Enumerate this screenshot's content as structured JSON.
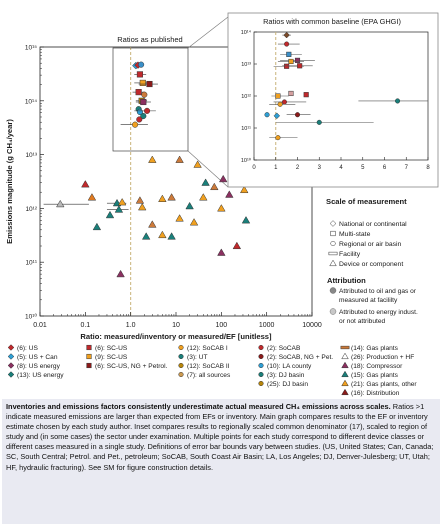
{
  "chart_data": [
    {
      "type": "scatter",
      "panel": "main",
      "title": "",
      "annotation": "Ratios as published",
      "xlabel": "Ratio: measured/inventory or measured/EF [unitless]",
      "ylabel": "Emissions magnitude (g CH₄/year)",
      "xscale": "log",
      "yscale": "log",
      "xlim": [
        0.01,
        10000
      ],
      "ylim": [
        10000000000.0,
        1000000000000000.0
      ],
      "xticks": [
        "0.01",
        "0.1",
        "1.0",
        "10",
        "100",
        "1000",
        "10000"
      ],
      "yticks": [
        "10¹⁰",
        "10¹¹",
        "10¹²",
        "10¹³",
        "10¹⁴",
        "10¹⁵"
      ],
      "reference_line_x": 1.0,
      "points": [
        {
          "x": 1.3,
          "y": 450000000000000.0,
          "c": "#2e9fd4",
          "s": "diamond",
          "xerr": [
            1.2,
            1.45
          ]
        },
        {
          "x": 1.45,
          "y": 460000000000000.0,
          "c": "#c0292c",
          "s": "diamond"
        },
        {
          "x": 1.7,
          "y": 470000000000000.0,
          "c": "#3a8fc8",
          "s": "circle"
        },
        {
          "x": 1.6,
          "y": 310000000000000.0,
          "c": "#c0292c",
          "s": "square",
          "xerr": [
            1.2,
            2.2
          ]
        },
        {
          "x": 1.85,
          "y": 215000000000000.0,
          "c": "#f0a020",
          "s": "square",
          "xerr": [
            1.2,
            2.4
          ]
        },
        {
          "x": 2.6,
          "y": 205000000000000.0,
          "c": "#8b1a1a",
          "s": "square",
          "xerr": [
            1.5,
            4.0
          ]
        },
        {
          "x": 1.5,
          "y": 145000000000000.0,
          "c": "#c0292c",
          "s": "square",
          "xerr": [
            1.1,
            2.0
          ]
        },
        {
          "x": 2.0,
          "y": 130000000000000.0,
          "c": "#cc7a3a",
          "s": "circle"
        },
        {
          "x": 1.75,
          "y": 100000000000000.0,
          "c": "#b8860b",
          "s": "square",
          "xerr": [
            1.3,
            2.3
          ]
        },
        {
          "x": 1.9,
          "y": 95000000000000.0,
          "c": "#8b3060",
          "s": "square",
          "xerr": [
            1.3,
            2.8
          ]
        },
        {
          "x": 1.5,
          "y": 70000000000000.0,
          "c": "#1a7f7a",
          "s": "circle"
        },
        {
          "x": 1.6,
          "y": 62000000000000.0,
          "c": "#2e9fd4",
          "s": "circle"
        },
        {
          "x": 2.3,
          "y": 65000000000000.0,
          "c": "#c0292c",
          "s": "circle",
          "xerr": [
            1.2,
            3.6
          ]
        },
        {
          "x": 1.9,
          "y": 52000000000000.0,
          "c": "#1a7f7a",
          "s": "circle"
        },
        {
          "x": 1.25,
          "y": 36000000000000.0,
          "c": "#f0a020",
          "s": "circle",
          "xerr": [
            0.6,
            2.4
          ]
        },
        {
          "x": 1.55,
          "y": 45000000000000.0,
          "c": "#c0292c",
          "s": "circle"
        },
        {
          "x": 0.028,
          "y": 1200000000000.0,
          "c": "#b8b8b8",
          "s": "triangle",
          "xerr": [
            0.012,
            0.12
          ]
        },
        {
          "x": 0.1,
          "y": 2800000000000.0,
          "c": "#c0292c",
          "s": "triangle"
        },
        {
          "x": 0.14,
          "y": 1600000000000.0,
          "c": "#e07a20",
          "s": "triangle"
        },
        {
          "x": 0.18,
          "y": 450000000000.0,
          "c": "#1a7f7a",
          "s": "triangle"
        },
        {
          "x": 0.35,
          "y": 750000000000.0,
          "c": "#1a7f7a",
          "s": "triangle"
        },
        {
          "x": 0.5,
          "y": 1250000000000.0,
          "c": "#1a7f7a",
          "s": "triangle",
          "xerr": [
            0.3,
            0.8
          ]
        },
        {
          "x": 0.55,
          "y": 950000000000.0,
          "c": "#1a7f7a",
          "s": "triangle",
          "xerr": [
            0.3,
            0.9
          ]
        },
        {
          "x": 0.65,
          "y": 1300000000000.0,
          "c": "#f0a020",
          "s": "triangle"
        },
        {
          "x": 0.6,
          "y": 60000000000.0,
          "c": "#8b3060",
          "s": "triangle"
        },
        {
          "x": 2.2,
          "y": 300000000000.0,
          "c": "#1a7f7a",
          "s": "triangle"
        },
        {
          "x": 5,
          "y": 320000000000.0,
          "c": "#f0a020",
          "s": "triangle"
        },
        {
          "x": 8,
          "y": 300000000000.0,
          "c": "#1a7f7a",
          "s": "triangle"
        },
        {
          "x": 25,
          "y": 550000000000.0,
          "c": "#f0a020",
          "s": "triangle"
        },
        {
          "x": 100,
          "y": 150000000000.0,
          "c": "#8b3060",
          "s": "triangle"
        },
        {
          "x": 220,
          "y": 200000000000.0,
          "c": "#c0292c",
          "s": "triangle"
        },
        {
          "x": 3,
          "y": 8000000000000.0,
          "c": "#f0a020",
          "s": "triangle"
        },
        {
          "x": 12,
          "y": 8000000000000.0,
          "c": "#cc7a3a",
          "s": "triangle"
        },
        {
          "x": 30,
          "y": 6500000000000.0,
          "c": "#f0a020",
          "s": "triangle"
        },
        {
          "x": 45,
          "y": 3000000000000.0,
          "c": "#1a7f7a",
          "s": "triangle"
        },
        {
          "x": 70,
          "y": 2500000000000.0,
          "c": "#cc7a3a",
          "s": "triangle"
        },
        {
          "x": 110,
          "y": 3500000000000.0,
          "c": "#8b3060",
          "s": "triangle"
        },
        {
          "x": 180,
          "y": 4200000000000.0,
          "c": "#1a7f7a",
          "s": "triangle"
        },
        {
          "x": 250,
          "y": 6000000000000.0,
          "c": "#f0a020",
          "s": "triangle"
        },
        {
          "x": 600,
          "y": 7000000000000.0,
          "c": "#8b3060",
          "s": "triangle"
        },
        {
          "x": 3000,
          "y": 3000000000000.0,
          "c": "#8b1a1a",
          "s": "triangle"
        },
        {
          "x": 5,
          "y": 1500000000000.0,
          "c": "#f0a020",
          "s": "triangle"
        },
        {
          "x": 8,
          "y": 1600000000000.0,
          "c": "#cc7a3a",
          "s": "triangle"
        },
        {
          "x": 20,
          "y": 1100000000000.0,
          "c": "#1a7f7a",
          "s": "triangle"
        },
        {
          "x": 40,
          "y": 1600000000000.0,
          "c": "#f0a020",
          "s": "triangle"
        },
        {
          "x": 100,
          "y": 1000000000000.0,
          "c": "#f0a020",
          "s": "triangle"
        },
        {
          "x": 150,
          "y": 1800000000000.0,
          "c": "#8b3060",
          "s": "triangle"
        },
        {
          "x": 320,
          "y": 2200000000000.0,
          "c": "#f0a020",
          "s": "triangle"
        },
        {
          "x": 3,
          "y": 500000000000.0,
          "c": "#cc7a3a",
          "s": "triangle"
        },
        {
          "x": 12,
          "y": 650000000000.0,
          "c": "#f0a020",
          "s": "triangle"
        },
        {
          "x": 350,
          "y": 600000000000.0,
          "c": "#1a7f7a",
          "s": "triangle"
        },
        {
          "x": 1.8,
          "y": 1050000000000.0,
          "c": "#f0a020",
          "s": "triangle"
        },
        {
          "x": 1.6,
          "y": 1400000000000.0,
          "c": "#cc7a3a",
          "s": "triangle"
        }
      ]
    },
    {
      "type": "scatter",
      "panel": "inset",
      "title": "Ratios with common baseline (EPA GHGI)",
      "xscale": "linear",
      "yscale": "log",
      "xlim": [
        0,
        8
      ],
      "ylim": [
        10000000000.0,
        100000000000000.0
      ],
      "xticks": [
        "0",
        "1",
        "2",
        "3",
        "4",
        "5",
        "6",
        "7",
        "8"
      ],
      "yticks": [
        "10¹⁰",
        "10¹¹",
        "10¹²",
        "10¹³",
        "10¹⁴"
      ],
      "reference_line_x": 1.0,
      "points": [
        {
          "x": 1.5,
          "y": 80000000000000.0,
          "c": "#7a4a2a",
          "s": "diamond",
          "xerr": [
            1.3,
            1.7
          ]
        },
        {
          "x": 1.5,
          "y": 42000000000000.0,
          "c": "#c0292c",
          "s": "circle",
          "xerr": [
            1.1,
            2.1
          ]
        },
        {
          "x": 1.6,
          "y": 20000000000000.0,
          "c": "#3a8fc8",
          "s": "square",
          "xerr": [
            1.2,
            2.2
          ]
        },
        {
          "x": 2.0,
          "y": 13000000000000.0,
          "c": "#8b3060",
          "s": "square",
          "xerr": [
            1.2,
            2.8
          ]
        },
        {
          "x": 1.7,
          "y": 12000000000000.0,
          "c": "#f0a020",
          "s": "square",
          "xerr": [
            1.1,
            2.3
          ]
        },
        {
          "x": 1.5,
          "y": 8500000000000.0,
          "c": "#c0292c",
          "s": "square",
          "xerr": [
            0.9,
            2.3
          ]
        },
        {
          "x": 2.1,
          "y": 8800000000000.0,
          "c": "#c0292c",
          "s": "square",
          "xerr": [
            1.3,
            2.7
          ]
        },
        {
          "x": 1.7,
          "y": 1200000000000.0,
          "c": "#d4a0a0",
          "s": "square"
        },
        {
          "x": 1.1,
          "y": 1000000000000.0,
          "c": "#f0a020",
          "s": "square",
          "xerr": [
            0.8,
            1.6
          ]
        },
        {
          "x": 2.4,
          "y": 1100000000000.0,
          "c": "#c0292c",
          "s": "square"
        },
        {
          "x": 6.6,
          "y": 700000000000.0,
          "c": "#1a7f7a",
          "s": "circle",
          "xerr": [
            4.8,
            8.0
          ]
        },
        {
          "x": 1.4,
          "y": 650000000000.0,
          "c": "#c0292c",
          "s": "circle",
          "xerr": [
            0.9,
            2.4
          ]
        },
        {
          "x": 1.2,
          "y": 550000000000.0,
          "c": "#f0a020",
          "s": "circle",
          "xerr": [
            0.7,
            1.9
          ]
        },
        {
          "x": 0.6,
          "y": 260000000000.0,
          "c": "#2e9fd4",
          "s": "circle"
        },
        {
          "x": 1.05,
          "y": 240000000000.0,
          "c": "#2e9fd4",
          "s": "diamond"
        },
        {
          "x": 2.0,
          "y": 260000000000.0,
          "c": "#8b1a1a",
          "s": "circle",
          "xerr": [
            1.5,
            2.6
          ]
        },
        {
          "x": 3.0,
          "y": 150000000000.0,
          "c": "#1a7f7a",
          "s": "circle",
          "xerr": [
            1.0,
            5.5
          ]
        },
        {
          "x": 1.1,
          "y": 50000000000.0,
          "c": "#f0a020",
          "s": "circle",
          "xerr": [
            0.7,
            2.0
          ]
        }
      ]
    }
  ],
  "scale_legend": {
    "title": "Scale of measurement",
    "items": [
      {
        "shape": "diamond",
        "label": "National or continental"
      },
      {
        "shape": "square",
        "label": "Multi-state"
      },
      {
        "shape": "circle",
        "label": "Regional or air basin"
      },
      {
        "shape": "bar",
        "label": "Facility"
      },
      {
        "shape": "triangle",
        "label": "Device or component"
      }
    ]
  },
  "attribution_legend": {
    "title": "Attribution",
    "items": [
      {
        "color": "#888888",
        "label": "Attributed to oil and gas or measured at facililty"
      },
      {
        "color": "#c8c8c8",
        "label": "Attributed to energy indust. or not attributed"
      }
    ]
  },
  "study_legend": [
    [
      {
        "shape": "diamond",
        "color": "#c0292c",
        "label": "(6): US"
      },
      {
        "shape": "diamond",
        "color": "#2e9fd4",
        "label": "(5): US + Can"
      },
      {
        "shape": "diamond",
        "color": "#8b3060",
        "label": "(8): US energy"
      },
      {
        "shape": "diamond",
        "color": "#1a7f7a",
        "label": "(13): US energy"
      }
    ],
    [
      {
        "shape": "square",
        "color": "#c0292c",
        "label": "(6): SC-US"
      },
      {
        "shape": "square",
        "color": "#f0a020",
        "label": "(9): SC-US"
      },
      {
        "shape": "square",
        "color": "#8b1a1a",
        "label": "(6): SC-US, NG + Petrol."
      }
    ],
    [
      {
        "shape": "circle",
        "color": "#f0a020",
        "label": "(12): SoCAB I"
      },
      {
        "shape": "circle",
        "color": "#1a7f7a",
        "label": "(3): UT"
      },
      {
        "shape": "circle",
        "color": "#b8860b",
        "label": "(12): SoCAB II"
      },
      {
        "shape": "circle",
        "color": "#cc9a50",
        "label": "(7): all sources"
      }
    ],
    [
      {
        "shape": "circle",
        "color": "#c0292c",
        "label": "(2): SoCAB"
      },
      {
        "shape": "circle",
        "color": "#8b1a1a",
        "label": "(2): SoCAB, NG + Pet."
      },
      {
        "shape": "circle",
        "color": "#2e9fd4",
        "label": "(10): LA county"
      },
      {
        "shape": "circle",
        "color": "#1a7f7a",
        "label": "(3): DJ basin"
      },
      {
        "shape": "circle",
        "color": "#b8860b",
        "label": "(25): DJ basin"
      }
    ],
    [
      {
        "shape": "bar",
        "color": "#cc7a3a",
        "label": "(14): Gas plants"
      },
      {
        "shape": "triangle",
        "color": "#ffffff",
        "label": "(26): Production + HF"
      },
      {
        "shape": "triangle",
        "color": "#8b3060",
        "label": "(18): Compressor"
      },
      {
        "shape": "triangle",
        "color": "#1a7f7a",
        "label": "(15): Gas plants"
      },
      {
        "shape": "triangle",
        "color": "#f0a020",
        "label": "(21): Gas plants, other"
      },
      {
        "shape": "triangle",
        "color": "#8b1a1a",
        "label": "(16): Distribution"
      }
    ]
  ],
  "caption": {
    "bold": "Inventories and emissions factors consistently underestimate actual measured CH₄ emissions across scales.",
    "body": " Ratios >1 indicate measured emissions are larger than expected from EFs or inventory. Main graph compares results to the EF or inventory estimate chosen by each study author. Inset compares results to regionally scaled common denominator (17), scaled to region of study and (in some cases) the sector under examination. Multiple points for each study correspond to different device classes or different cases measured in a single study. Definitions of error bar bounds vary between studies. (US, United States; Can, Canada; SC, South Central; Petrol. and Pet., petroleum; SoCAB, South Coast Air Basin; LA, Los Angeles; DJ, Denver-Julesberg; UT, Utah; HF, hydraulic fracturing). See SM for figure construction details."
  }
}
